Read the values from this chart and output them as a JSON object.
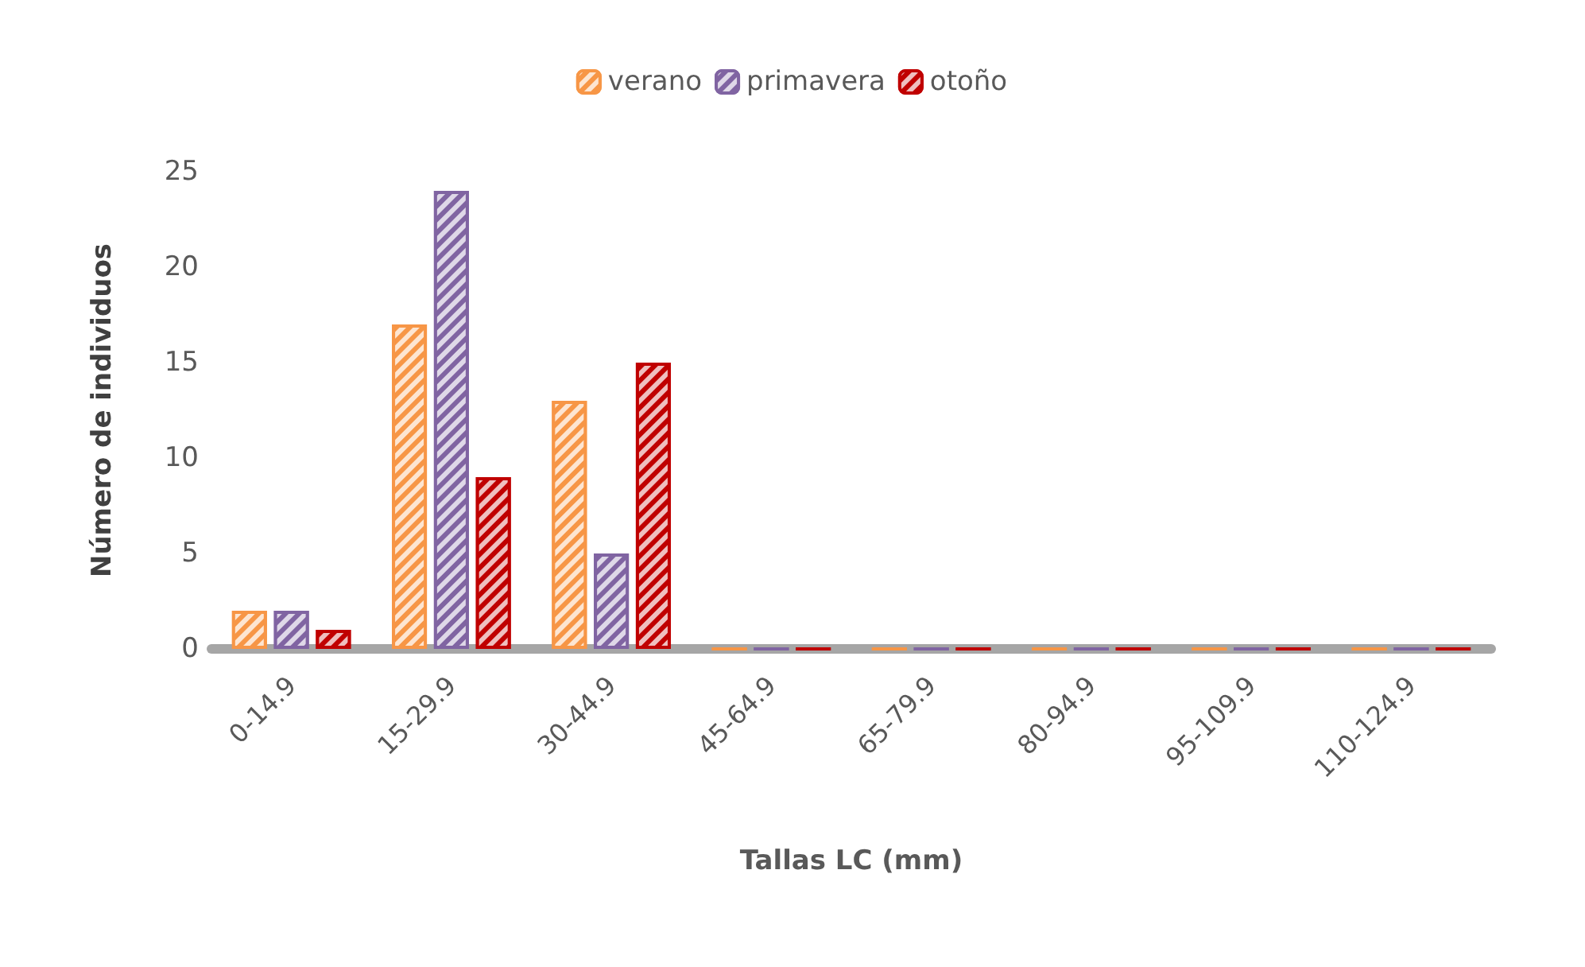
{
  "chart_data": {
    "type": "bar",
    "xlabel": "Tallas LC (mm)",
    "ylabel": "Número de individuos",
    "categories": [
      "0-14.9",
      "15-29.9",
      "30-44.9",
      "45-64.9",
      "65-79.9",
      "80-94.9",
      "95-109.9",
      "110-124.9"
    ],
    "series": [
      {
        "name": "verano",
        "color": "#f79646",
        "values": [
          2,
          17,
          13,
          0,
          0,
          0,
          0,
          0
        ]
      },
      {
        "name": "primavera",
        "color": "#8064a2",
        "values": [
          2,
          24,
          5,
          0,
          0,
          0,
          0,
          0
        ]
      },
      {
        "name": "otoño",
        "color": "#c00000",
        "values": [
          1,
          9,
          15,
          0,
          0,
          0,
          0,
          0
        ]
      }
    ],
    "ylim": [
      0,
      25
    ],
    "yticks": [
      0,
      5,
      10,
      15,
      20,
      25
    ],
    "grid": false,
    "legend": "top"
  }
}
